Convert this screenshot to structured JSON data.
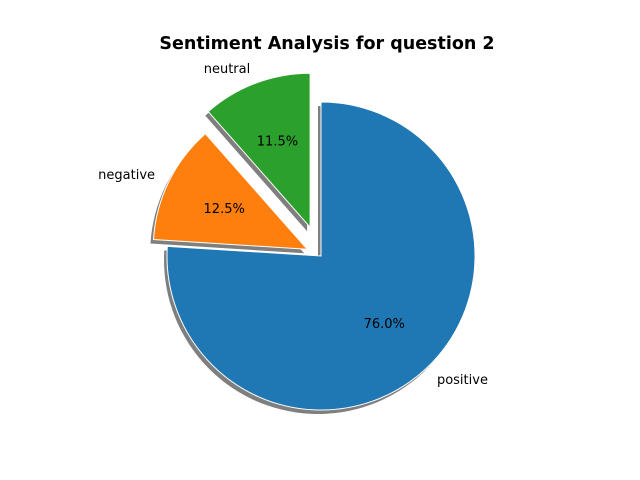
{
  "chart_data": {
    "type": "pie",
    "title": "Sentiment Analysis for question 2",
    "slices": [
      {
        "label": "positive",
        "value": 76.0,
        "pct_text": "76.0%",
        "color": "#1f77b4",
        "explode": 0.0
      },
      {
        "label": "negative",
        "value": 12.5,
        "pct_text": "12.5%",
        "color": "#ff7f0e",
        "explode": 0.1
      },
      {
        "label": "neutral",
        "value": 11.5,
        "pct_text": "11.5%",
        "color": "#2ca02c",
        "explode": 0.2
      }
    ],
    "start_angle_deg": 90,
    "direction": "clockwise",
    "shadow": true,
    "shadow_color": "#7f7f7f",
    "edge_color": "#ffffff"
  }
}
